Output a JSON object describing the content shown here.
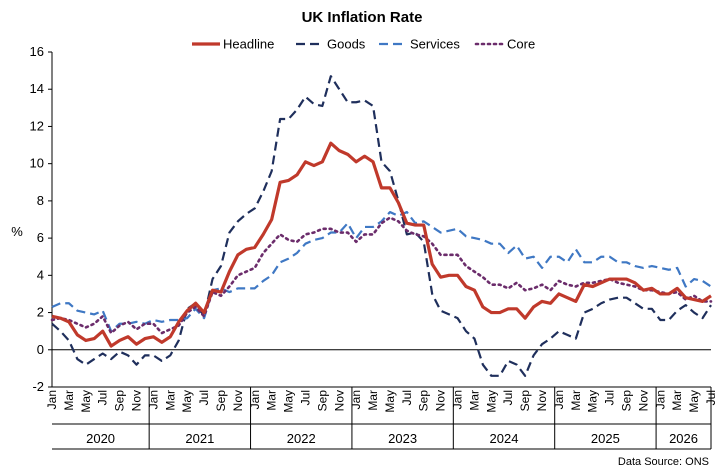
{
  "chart_data": {
    "type": "line",
    "title": "UK Inflation Rate",
    "ylabel": "%",
    "ylim": [
      -2,
      16
    ],
    "yticks": [
      -2,
      0,
      2,
      4,
      6,
      8,
      10,
      12,
      14,
      16
    ],
    "grid": false,
    "legend_position": "top",
    "source": "Data Source: ONS",
    "year_labels": [
      "2020",
      "2021",
      "2022",
      "2023",
      "2024",
      "2025",
      "2026"
    ],
    "x_tick_labels": [
      "Jan",
      "Mar",
      "May",
      "Jul",
      "Sep",
      "Nov",
      "Jan",
      "Mar",
      "May",
      "Jul",
      "Sep",
      "Nov",
      "Jan",
      "Mar",
      "May",
      "Jul",
      "Sep",
      "Nov",
      "Jan",
      "Mar",
      "May",
      "Jul",
      "Sep",
      "Nov",
      "Jan",
      "Mar",
      "May",
      "Jul",
      "Sep",
      "Nov",
      "Jan",
      "Mar",
      "May",
      "Jul",
      "Sep",
      "Nov",
      "Jan",
      "Mar",
      "May",
      "Jul"
    ],
    "months_per_year": [
      12,
      12,
      12,
      12,
      12,
      12,
      7
    ],
    "series": [
      {
        "name": "Headline",
        "color": "#C0392B",
        "style": "solid",
        "values": [
          1.8,
          1.7,
          1.5,
          0.8,
          0.5,
          0.6,
          1.0,
          0.2,
          0.5,
          0.7,
          0.3,
          0.6,
          0.7,
          0.4,
          0.7,
          1.5,
          2.1,
          2.5,
          2.0,
          3.2,
          3.1,
          4.2,
          5.1,
          5.4,
          5.5,
          6.2,
          7.0,
          9.0,
          9.1,
          9.4,
          10.1,
          9.9,
          10.1,
          11.1,
          10.7,
          10.5,
          10.1,
          10.4,
          10.1,
          8.7,
          8.7,
          7.9,
          6.8,
          6.7,
          6.7,
          4.6,
          3.9,
          4.0,
          4.0,
          3.4,
          3.2,
          2.3,
          2.0,
          2.0,
          2.2,
          2.2,
          1.7,
          2.3,
          2.6,
          2.5,
          3.0,
          2.8,
          2.6,
          3.5,
          3.4,
          3.6,
          3.8,
          3.8,
          3.8,
          3.6,
          3.2,
          3.3,
          3.0,
          3.0,
          3.3,
          2.8,
          2.7,
          2.6,
          2.9
        ]
      },
      {
        "name": "Goods",
        "color": "#1F2F5C",
        "style": "dash",
        "values": [
          1.4,
          1.0,
          0.5,
          -0.5,
          -0.8,
          -0.5,
          -0.2,
          -0.5,
          -0.1,
          -0.3,
          -0.8,
          -0.3,
          -0.3,
          -0.6,
          -0.3,
          0.5,
          2.2,
          2.5,
          1.8,
          3.8,
          4.5,
          6.3,
          6.9,
          7.3,
          7.6,
          8.5,
          9.6,
          12.4,
          12.4,
          12.9,
          13.6,
          13.2,
          13.1,
          14.7,
          14.0,
          13.3,
          13.3,
          13.4,
          13.1,
          10.1,
          9.6,
          8.0,
          6.2,
          6.3,
          5.8,
          3.0,
          2.1,
          1.9,
          1.7,
          1.0,
          0.6,
          -0.8,
          -1.4,
          -1.4,
          -0.6,
          -0.8,
          -1.4,
          -0.3,
          0.3,
          0.6,
          1.0,
          0.8,
          0.6,
          2.0,
          2.2,
          2.5,
          2.7,
          2.8,
          2.8,
          2.5,
          2.2,
          2.2,
          1.6,
          1.6,
          2.1,
          2.4,
          2.0,
          1.7,
          2.4
        ]
      },
      {
        "name": "Services",
        "color": "#3F78C4",
        "style": "dash",
        "values": [
          2.3,
          2.5,
          2.5,
          2.1,
          2.0,
          1.9,
          2.1,
          1.0,
          1.4,
          1.4,
          1.5,
          1.4,
          1.6,
          1.5,
          1.6,
          1.6,
          1.7,
          2.2,
          1.7,
          3.2,
          3.3,
          3.1,
          3.3,
          3.3,
          3.3,
          3.7,
          4.0,
          4.7,
          4.9,
          5.2,
          5.7,
          5.9,
          6.0,
          6.3,
          6.3,
          6.8,
          6.0,
          6.6,
          6.6,
          6.9,
          7.4,
          7.2,
          7.4,
          6.8,
          6.9,
          6.6,
          6.3,
          6.4,
          6.5,
          6.1,
          6.0,
          5.9,
          5.7,
          5.7,
          5.2,
          5.6,
          4.9,
          5.0,
          4.4,
          5.0,
          5.0,
          4.7,
          5.4,
          4.7,
          4.7,
          5.0,
          5.0,
          4.7,
          4.7,
          4.5,
          4.4,
          4.5,
          4.4,
          4.3,
          4.4,
          3.4,
          3.8,
          3.7,
          3.4
        ]
      },
      {
        "name": "Core",
        "color": "#6B2C6B",
        "style": "dot",
        "values": [
          1.6,
          1.7,
          1.6,
          1.4,
          1.2,
          1.4,
          1.8,
          0.9,
          1.3,
          1.5,
          1.1,
          1.4,
          1.4,
          0.9,
          1.1,
          1.3,
          2.0,
          2.3,
          1.8,
          3.1,
          2.9,
          3.4,
          4.0,
          4.2,
          4.4,
          5.2,
          5.7,
          6.2,
          5.9,
          5.8,
          6.2,
          6.3,
          6.5,
          6.5,
          6.3,
          6.3,
          5.8,
          6.2,
          6.2,
          6.8,
          7.1,
          6.9,
          6.4,
          6.2,
          6.1,
          5.7,
          5.1,
          5.1,
          5.1,
          4.5,
          4.2,
          3.9,
          3.5,
          3.5,
          3.3,
          3.6,
          3.2,
          3.3,
          3.5,
          3.2,
          3.7,
          3.5,
          3.4,
          3.6,
          3.6,
          3.7,
          3.8,
          3.6,
          3.5,
          3.4,
          3.2,
          3.2,
          3.1,
          3.0,
          3.1,
          2.7,
          2.9,
          2.6,
          2.6
        ]
      }
    ]
  }
}
